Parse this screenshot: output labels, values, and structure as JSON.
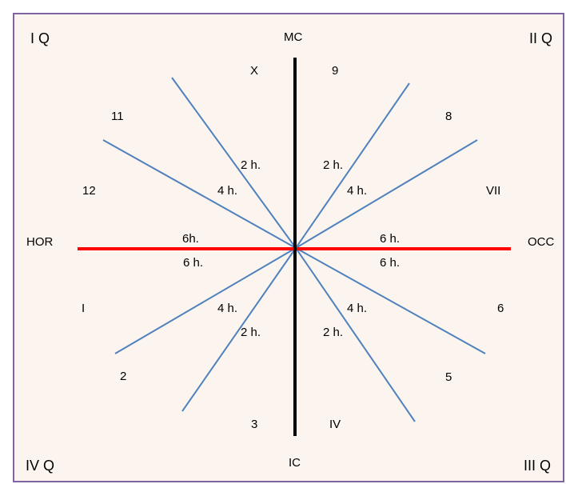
{
  "quadrants": {
    "top_left": "I Q",
    "top_right": "II Q",
    "bottom_left": "IV Q",
    "bottom_right": "III Q"
  },
  "axes": {
    "top": "MC",
    "bottom": "IC",
    "left": "HOR",
    "right": "OCC"
  },
  "houses": {
    "h1": "I",
    "h2": "2",
    "h3": "3",
    "h4": "IV",
    "h5": "5",
    "h6": "6",
    "h7": "VII",
    "h8": "8",
    "h9": "9",
    "h10": "X",
    "h11": "11",
    "h12": "12"
  },
  "hour_labels": {
    "upper_left_2": "2 h.",
    "upper_left_4": "4 h.",
    "upper_left_6": "6h.",
    "upper_right_2": "2 h.",
    "upper_right_4": "4 h.",
    "upper_right_6": "6 h.",
    "lower_left_6": "6 h.",
    "lower_left_4": "4 h.",
    "lower_left_2": "2 h.",
    "lower_right_6": "6 h.",
    "lower_right_4": "4 h.",
    "lower_right_2": "2 h."
  },
  "colors": {
    "border": "#8064a2",
    "background": "#fcf5ef",
    "meridian": "#000000",
    "horizon": "#ff0000",
    "hour_lines": "#4f81bd"
  }
}
